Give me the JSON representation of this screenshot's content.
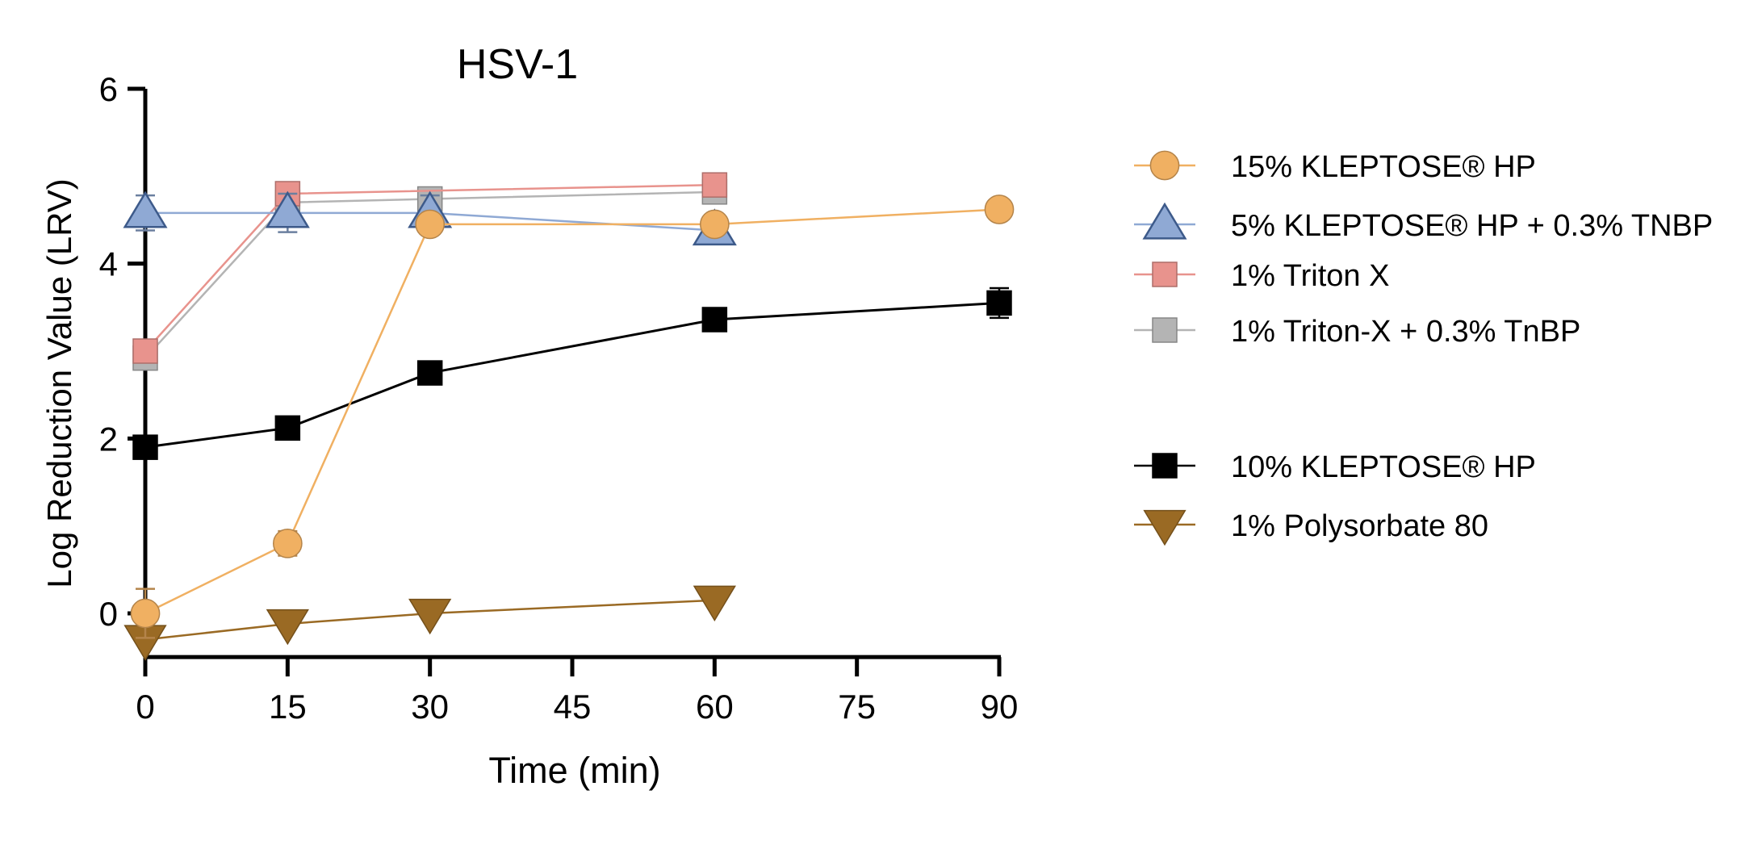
{
  "chart_data": {
    "type": "line",
    "title": "HSV-1",
    "xlabel": "Time (min)",
    "ylabel": "Log Reduction Value (LRV)",
    "xlim": [
      0,
      90
    ],
    "ylim": [
      -0.5,
      6
    ],
    "xticks": [
      0,
      15,
      30,
      45,
      60,
      75,
      90
    ],
    "yticks": [
      0,
      2,
      4,
      6
    ],
    "x_tick_labels": [
      "0",
      "15",
      "30",
      "45",
      "60",
      "75",
      "90"
    ],
    "y_tick_labels": [
      "0",
      "2",
      "4",
      "6"
    ],
    "grid": false,
    "legend_position": "right",
    "series": [
      {
        "name": "15% KLEPTOSE® HP",
        "marker": "circle",
        "color": "#f0b062",
        "points": [
          {
            "x": 0,
            "y": 0.0,
            "err": 0.28
          },
          {
            "x": 15,
            "y": 0.8,
            "err": 0.14
          },
          {
            "x": 30,
            "y": 4.45,
            "err": 0.08
          },
          {
            "x": 60,
            "y": 4.45,
            "err": 0.05
          },
          {
            "x": 90,
            "y": 4.62,
            "err": 0.04
          }
        ]
      },
      {
        "name": "5% KLEPTOSE® HP + 0.3% TNBP",
        "marker": "triangle-up",
        "color": "#8fa9d4",
        "points": [
          {
            "x": 0,
            "y": 4.58,
            "err": 0.2
          },
          {
            "x": 15,
            "y": 4.58,
            "err": 0.22
          },
          {
            "x": 30,
            "y": 4.58,
            "err": 0.2
          },
          {
            "x": 60,
            "y": 4.38,
            "err": 0.05
          }
        ]
      },
      {
        "name": "1% Triton X",
        "marker": "square",
        "color": "#e8938d",
        "points": [
          {
            "x": 0,
            "y": 3.0,
            "err": 0.05
          },
          {
            "x": 15,
            "y": 4.8,
            "err": 0.05
          },
          {
            "x": 60,
            "y": 4.9,
            "err": 0.04
          }
        ]
      },
      {
        "name": "1% Triton-X + 0.3% TnBP",
        "marker": "square",
        "color": "#b4b4b4",
        "points": [
          {
            "x": 0,
            "y": 2.92,
            "err": 0.05
          },
          {
            "x": 15,
            "y": 4.7,
            "err": 0.05
          },
          {
            "x": 30,
            "y": 4.74,
            "err": 0.05
          },
          {
            "x": 60,
            "y": 4.82,
            "err": 0.04
          }
        ]
      },
      {
        "name": "10% KLEPTOSE® HP",
        "marker": "square",
        "color": "#000000",
        "points": [
          {
            "x": 0,
            "y": 1.9,
            "err": 0.05
          },
          {
            "x": 15,
            "y": 2.12,
            "err": 0.05
          },
          {
            "x": 30,
            "y": 2.75,
            "err": 0.05
          },
          {
            "x": 60,
            "y": 3.36,
            "err": 0.05
          },
          {
            "x": 90,
            "y": 3.55,
            "err": 0.17
          }
        ]
      },
      {
        "name": "1% Polysorbate 80",
        "marker": "triangle-down",
        "color": "#9a6a24",
        "points": [
          {
            "x": 0,
            "y": -0.3,
            "err": 0.04
          },
          {
            "x": 15,
            "y": -0.12,
            "err": 0.04
          },
          {
            "x": 30,
            "y": 0.0,
            "err": 0.04
          },
          {
            "x": 60,
            "y": 0.15,
            "err": 0.04
          }
        ]
      }
    ]
  }
}
